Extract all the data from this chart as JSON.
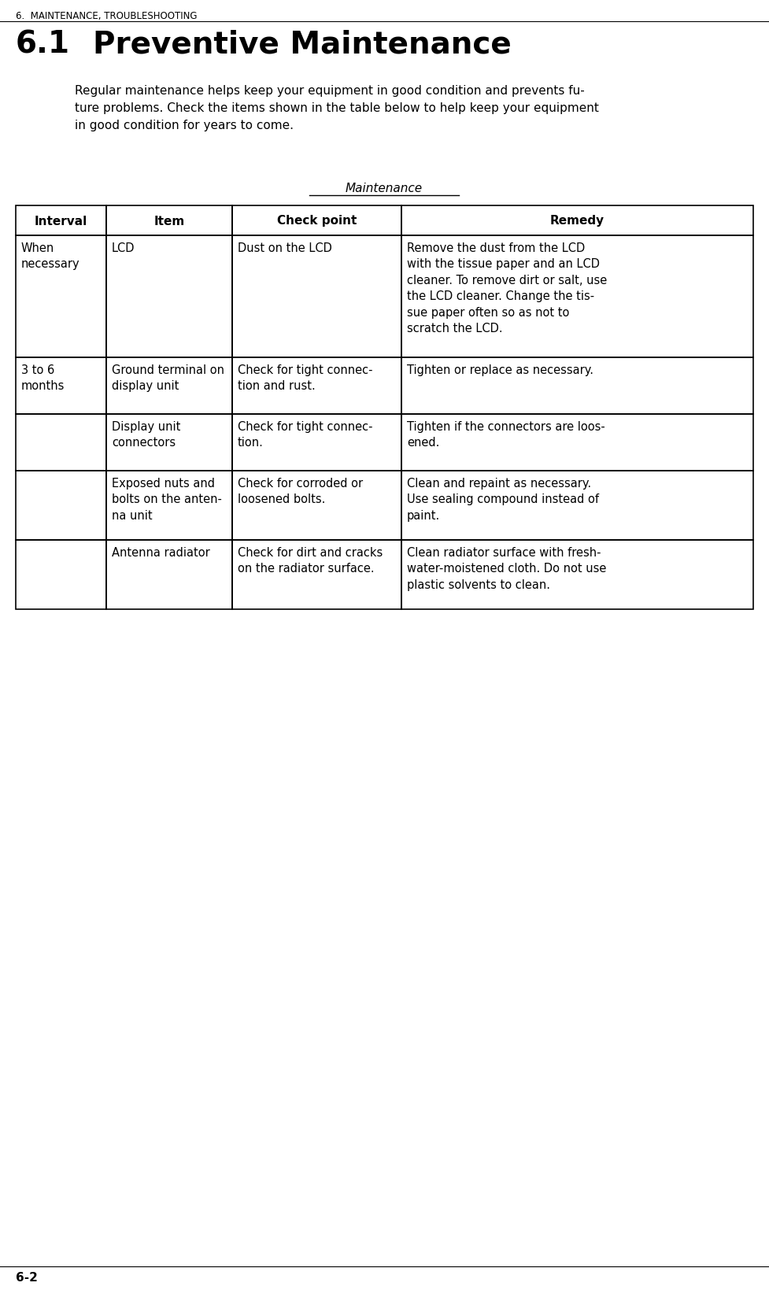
{
  "page_header": "6.  MAINTENANCE, TROUBLESHOOTING",
  "section_number": "6.1",
  "section_title": "Preventive Maintenance",
  "intro_text": "Regular maintenance helps keep your equipment in good condition and prevents fu-\nture problems. Check the items shown in the table below to help keep your equipment\nin good condition for years to come.",
  "table_title": "Maintenance",
  "col_headers": [
    "Interval",
    "Item",
    "Check point",
    "Remedy"
  ],
  "rows": [
    {
      "interval": "When\nnecessary",
      "item": "LCD",
      "checkpoint": "Dust on the LCD",
      "remedy": "Remove the dust from the LCD\nwith the tissue paper and an LCD\ncleaner. To remove dirt or salt, use\nthe LCD cleaner. Change the tis-\nsue paper often so as not to\nscratch the LCD."
    },
    {
      "interval": "3 to 6\nmonths",
      "item": "Ground terminal on\ndisplay unit",
      "checkpoint": "Check for tight connec-\ntion and rust.",
      "remedy": "Tighten or replace as necessary."
    },
    {
      "interval": "",
      "item": "Display unit\nconnectors",
      "checkpoint": "Check for tight connec-\ntion.",
      "remedy": "Tighten if the connectors are loos-\nened."
    },
    {
      "interval": "",
      "item": "Exposed nuts and\nbolts on the anten-\nna unit",
      "checkpoint": "Check for corroded or\nloosened bolts.",
      "remedy": "Clean and repaint as necessary.\nUse sealing compound instead of\npaint."
    },
    {
      "interval": "",
      "item": "Antenna radiator",
      "checkpoint": "Check for dirt and cracks\non the radiator surface.",
      "remedy": "Clean radiator surface with fresh-\nwater-moistened cloth. Do not use\nplastic solvents to clean."
    }
  ],
  "footer_text": "6-2",
  "bg_color": "#ffffff",
  "text_color": "#000000"
}
